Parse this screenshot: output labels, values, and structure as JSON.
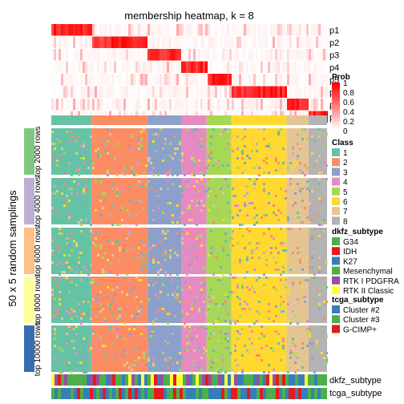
{
  "chart_data": {
    "type": "heatmap",
    "title": "membership heatmap, k = 8",
    "ylabel": "50 x 5 random samplings",
    "membership_rows": [
      "p1",
      "p2",
      "p3",
      "p4",
      "p5",
      "p6",
      "p7",
      "p8"
    ],
    "class_bar": [
      {
        "class": "1",
        "fraction": 0.145
      },
      {
        "class": "2",
        "fraction": 0.205
      },
      {
        "class": "3",
        "fraction": 0.123
      },
      {
        "class": "4",
        "fraction": 0.09
      },
      {
        "class": "5",
        "fraction": 0.09
      },
      {
        "class": "6",
        "fraction": 0.2
      },
      {
        "class": "7",
        "fraction": 0.08
      },
      {
        "class": "8",
        "fraction": 0.067
      }
    ],
    "row_groups": [
      "top 2000 rows",
      "top 4000 rows",
      "top 6000 rows",
      "top 8000 rows",
      "top 10000 rows"
    ],
    "row_group_colors": [
      "#7fc97f",
      "#beaed4",
      "#fdc086",
      "#ffff99",
      "#386cb0"
    ],
    "prob_legend": {
      "title": "Prob",
      "ticks": [
        "1",
        "0.8",
        "0.6",
        "0.4",
        "0.2",
        "0"
      ],
      "low_color": "#ffffff",
      "high_color": "#ff0000"
    },
    "class_legend": {
      "title": "Class",
      "items": [
        {
          "label": "1",
          "color": "#66c2a5"
        },
        {
          "label": "2",
          "color": "#fc8d62"
        },
        {
          "label": "3",
          "color": "#8da0cb"
        },
        {
          "label": "4",
          "color": "#e78ac3"
        },
        {
          "label": "5",
          "color": "#a6d854"
        },
        {
          "label": "6",
          "color": "#ffd92f"
        },
        {
          "label": "7",
          "color": "#e5c494"
        },
        {
          "label": "8",
          "color": "#b3b3b3"
        }
      ]
    },
    "dkfz_legend": {
      "title": "dkfz_subtype",
      "items": [
        {
          "label": "G34",
          "color": "#4daf4a"
        },
        {
          "label": "IDH",
          "color": "#e41a1c"
        },
        {
          "label": "K27",
          "color": "#377eb8"
        },
        {
          "label": "Mesenchymal",
          "color": "#4daf4a"
        },
        {
          "label": "RTK I PDGFRA",
          "color": "#984ea3"
        },
        {
          "label": "RTK II Classic",
          "color": "#ffff33"
        }
      ]
    },
    "tcga_legend": {
      "title": "tcga_subtype",
      "items": [
        {
          "label": "Cluster #2",
          "color": "#377eb8"
        },
        {
          "label": "Cluster #3",
          "color": "#4daf4a"
        },
        {
          "label": "G-CIMP+",
          "color": "#e41a1c"
        }
      ]
    },
    "bottom_annotations": [
      "dkfz_subtype",
      "tcga_subtype"
    ]
  }
}
